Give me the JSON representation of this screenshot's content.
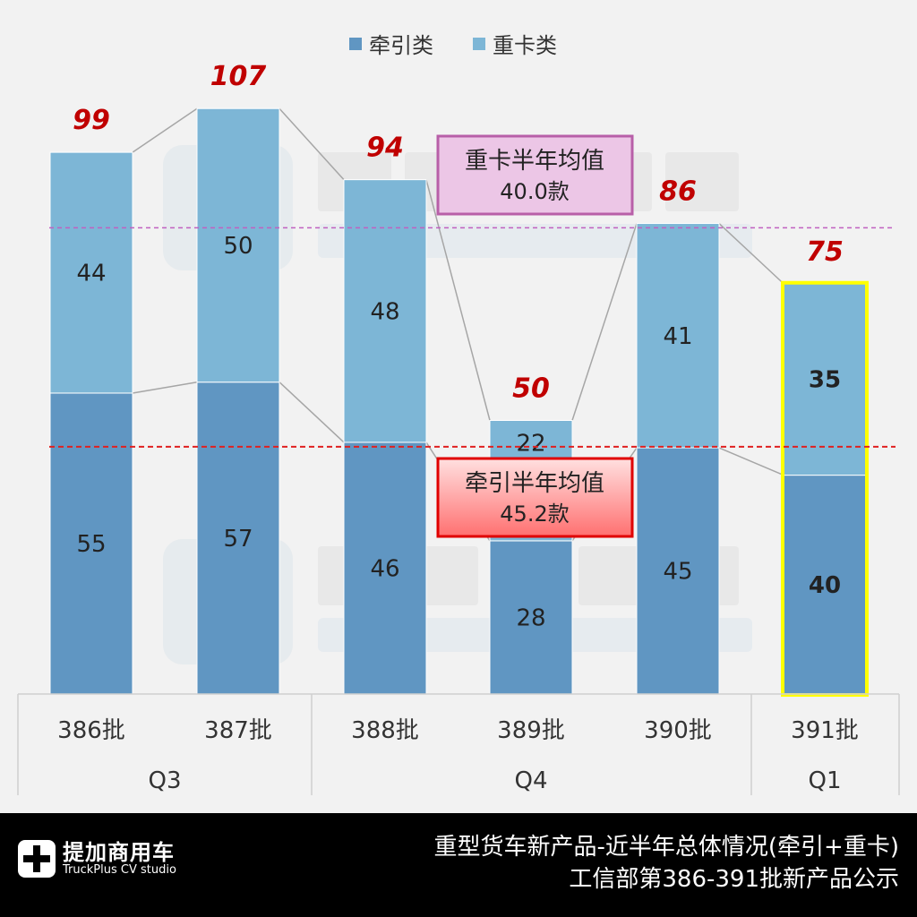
{
  "chart_data": {
    "type": "bar",
    "stacked": true,
    "categories": [
      "386批",
      "387批",
      "388批",
      "389批",
      "390批",
      "391批"
    ],
    "groups": [
      {
        "label": "Q3",
        "categories": [
          "386批",
          "387批"
        ]
      },
      {
        "label": "Q4",
        "categories": [
          "388批",
          "389批",
          "390批"
        ]
      },
      {
        "label": "Q1",
        "categories": [
          "391批"
        ]
      }
    ],
    "series": [
      {
        "name": "牵引类",
        "values": [
          55,
          57,
          46,
          28,
          45,
          40
        ],
        "color": "#6096c2"
      },
      {
        "name": "重卡类",
        "values": [
          44,
          50,
          48,
          22,
          41,
          35
        ],
        "color": "#7db6d6"
      }
    ],
    "totals": [
      99,
      107,
      94,
      50,
      86,
      75
    ],
    "total_color": "#c00000",
    "highlight_category": "391批",
    "highlight_color": "#ffff00",
    "legend_position": "top",
    "annotations": [
      {
        "label": "重卡半年均值",
        "value_text": "40.0款",
        "value": 40.0,
        "line_color": "#c060c0"
      },
      {
        "label": "牵引半年均值",
        "value_text": "45.2款",
        "value": 45.2,
        "line_color": "#e02020"
      }
    ],
    "ylim": [
      0,
      110
    ],
    "grid": false
  },
  "watermark": {
    "cn": "提加商用车",
    "en": "TruckPlus CV studio"
  },
  "footer": {
    "logo_cn": "提加商用车",
    "logo_en": "TruckPlus CV studio",
    "title_line1": "重型货车新产品-近半年总体情况(牵引+重卡)",
    "title_line2": "工信部第386-391批新产品公示"
  }
}
